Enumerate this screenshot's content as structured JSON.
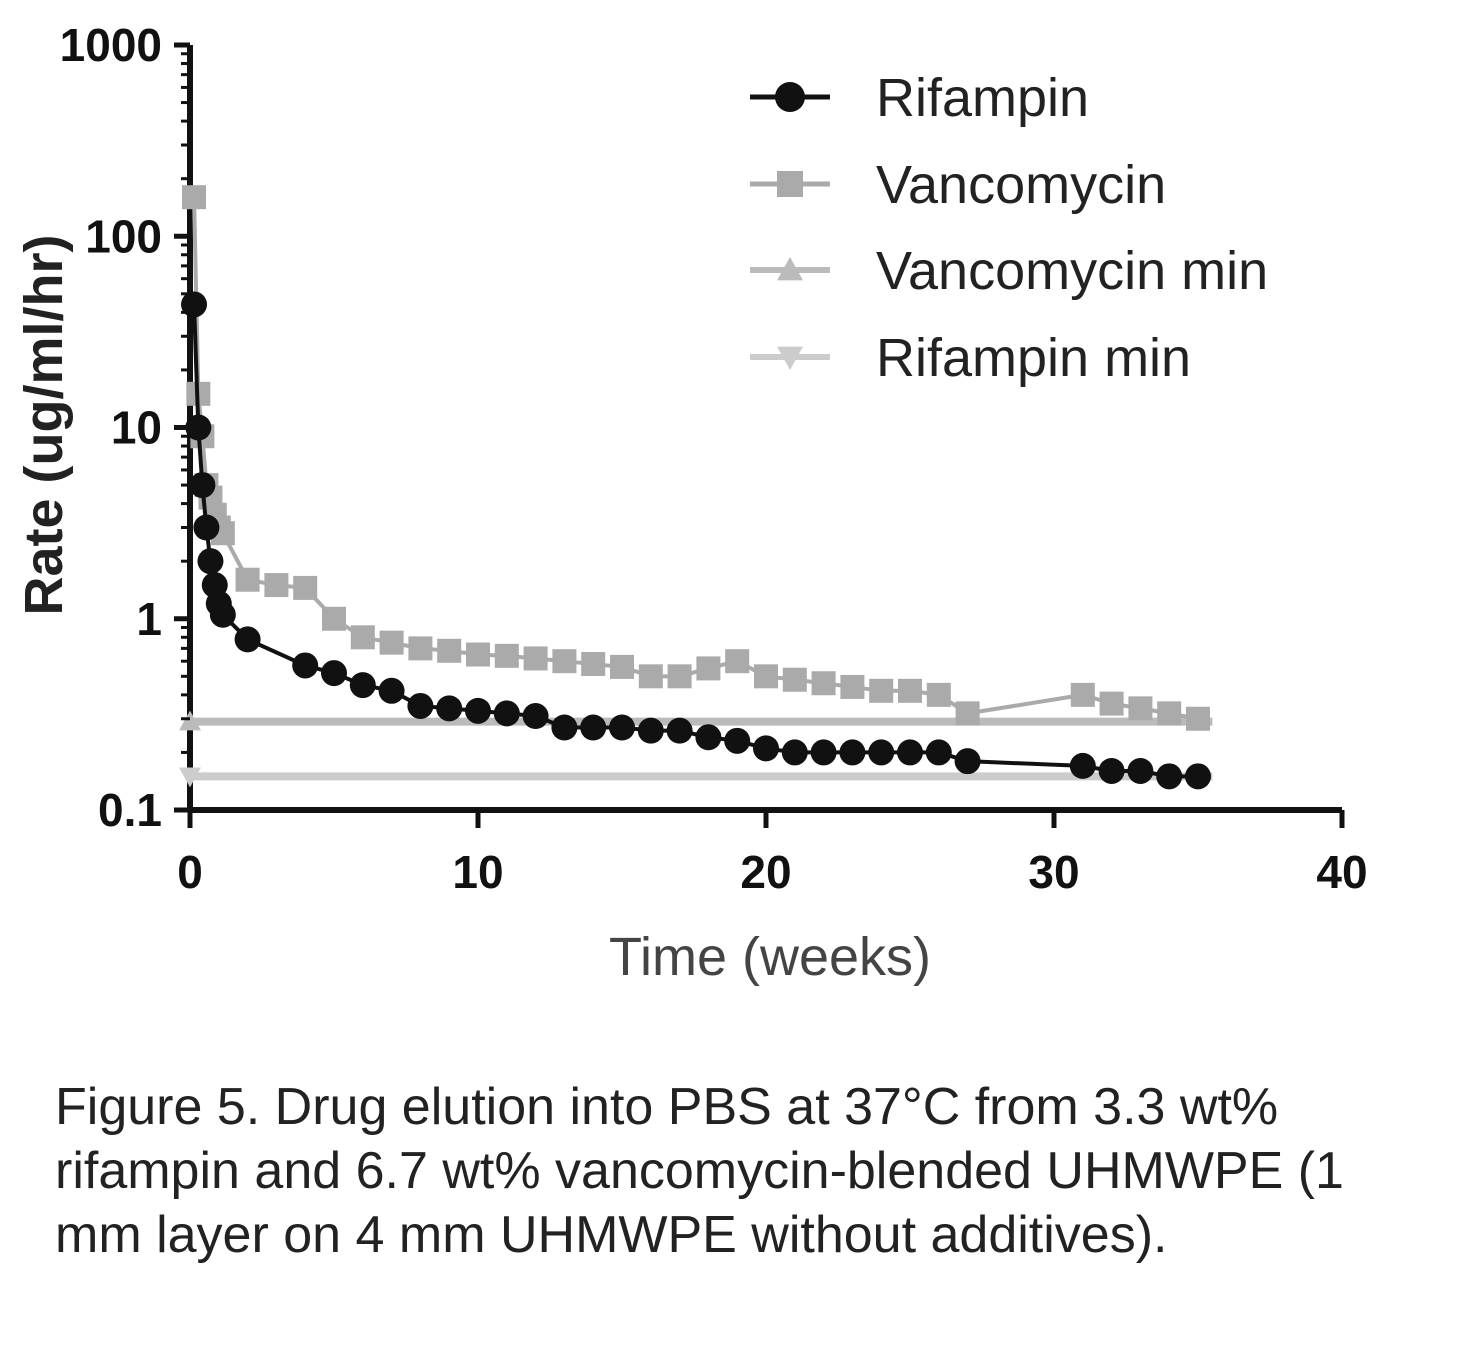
{
  "chart_data": {
    "type": "line",
    "xlabel": "Time (weeks)",
    "ylabel": "Rate (ug/ml/hr)",
    "xlim": [
      0,
      40
    ],
    "ylim": [
      0.1,
      1000
    ],
    "yscale": "log",
    "x_ticks": [
      0,
      10,
      20,
      30,
      40
    ],
    "y_ticks": [
      0.1,
      1,
      10,
      100,
      1000
    ],
    "y_tick_labels": [
      "0.1",
      "1",
      "10",
      "100",
      "1000"
    ],
    "grid": false,
    "legend_position": "top-right",
    "series": [
      {
        "name": "Rifampin",
        "color": "#111111",
        "marker": "circle",
        "x": [
          0.14,
          0.29,
          0.43,
          0.57,
          0.71,
          0.86,
          1.0,
          1.14,
          2.0,
          4.0,
          5.0,
          6.0,
          7.0,
          8.0,
          9.0,
          10.0,
          11.0,
          12.0,
          13.0,
          14.0,
          15.0,
          16.0,
          17.0,
          18.0,
          19.0,
          20.0,
          21.0,
          22.0,
          23.0,
          24.0,
          25.0,
          26.0,
          27.0,
          31.0,
          32.0,
          33.0,
          34.0,
          35.0
        ],
        "y": [
          44,
          10,
          5,
          3,
          2,
          1.5,
          1.2,
          1.05,
          0.78,
          0.57,
          0.52,
          0.45,
          0.42,
          0.35,
          0.34,
          0.33,
          0.32,
          0.31,
          0.27,
          0.27,
          0.27,
          0.26,
          0.26,
          0.24,
          0.23,
          0.21,
          0.2,
          0.2,
          0.2,
          0.2,
          0.2,
          0.2,
          0.18,
          0.17,
          0.16,
          0.16,
          0.15,
          0.15
        ]
      },
      {
        "name": "Vancomycin",
        "color": "#aaaaaa",
        "marker": "square",
        "x": [
          0.14,
          0.29,
          0.43,
          0.57,
          0.71,
          0.86,
          1.0,
          1.14,
          2.0,
          3.0,
          4.0,
          5.0,
          6.0,
          7.0,
          8.0,
          9.0,
          10.0,
          11.0,
          12.0,
          13.0,
          14.0,
          15.0,
          16.0,
          17.0,
          18.0,
          19.0,
          20.0,
          21.0,
          22.0,
          23.0,
          24.0,
          25.0,
          26.0,
          27.0,
          31.0,
          32.0,
          33.0,
          34.0,
          35.0
        ],
        "y": [
          160,
          15,
          9,
          5,
          4.3,
          3.5,
          3,
          2.8,
          1.6,
          1.5,
          1.45,
          1.0,
          0.8,
          0.75,
          0.7,
          0.68,
          0.65,
          0.64,
          0.62,
          0.6,
          0.58,
          0.56,
          0.5,
          0.5,
          0.55,
          0.6,
          0.5,
          0.48,
          0.46,
          0.44,
          0.42,
          0.42,
          0.4,
          0.32,
          0.4,
          0.36,
          0.34,
          0.32,
          0.3
        ]
      },
      {
        "name": "Vancomycin min",
        "color": "#bbbbbb",
        "marker": "triangle",
        "x": [
          0,
          35.5
        ],
        "y": [
          0.29,
          0.29
        ]
      },
      {
        "name": "Rifampin min",
        "color": "#cccccc",
        "marker": "triangle-down",
        "x": [
          0,
          35.5
        ],
        "y": [
          0.15,
          0.15
        ]
      }
    ]
  },
  "caption": "Figure 5. Drug elution into PBS at 37°C from 3.3 wt% rifampin and 6.7 wt% vancomycin-blended UHMWPE (1 mm layer on 4 mm UHMWPE without additives)."
}
